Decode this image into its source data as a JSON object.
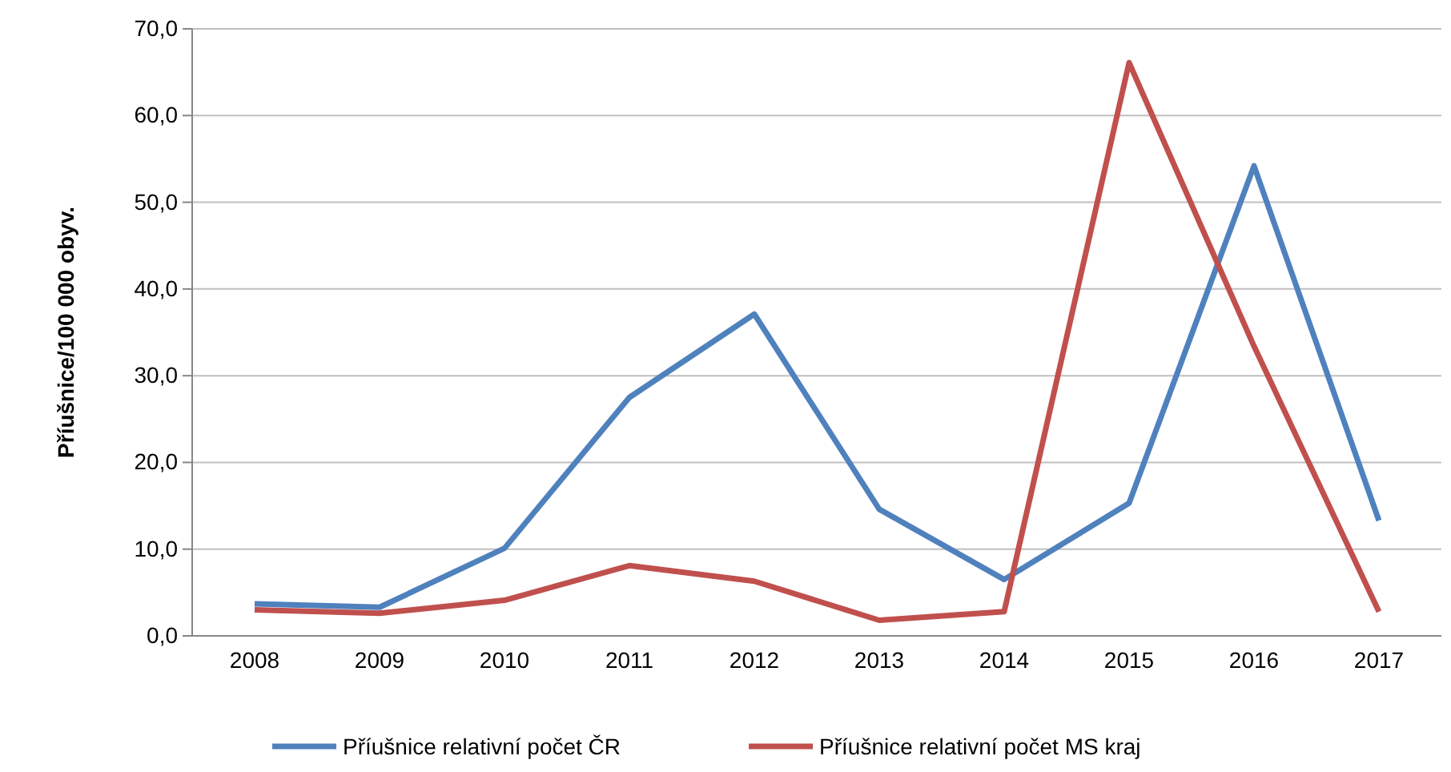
{
  "chart_data": {
    "type": "line",
    "ylabel": "Příušnice/100 000 obyv.",
    "categories": [
      "2008",
      "2009",
      "2010",
      "2011",
      "2012",
      "2013",
      "2014",
      "2015",
      "2016",
      "2017"
    ],
    "series": [
      {
        "name": "Příušnice relativní počet ČR",
        "color": "#4f81bd",
        "values": [
          3.7,
          3.3,
          10.1,
          27.5,
          37.1,
          14.6,
          6.5,
          15.3,
          54.2,
          13.3
        ]
      },
      {
        "name": "Příušnice relativní počet MS kraj",
        "color": "#c0504d",
        "values": [
          3.0,
          2.6,
          4.1,
          8.1,
          6.3,
          1.8,
          2.8,
          66.1,
          33.4,
          2.8
        ]
      }
    ],
    "ylim": [
      0,
      70
    ],
    "yticks": [
      {
        "value": 0,
        "label": "0,0"
      },
      {
        "value": 10,
        "label": "10,0"
      },
      {
        "value": 20,
        "label": "20,0"
      },
      {
        "value": 30,
        "label": "30,0"
      },
      {
        "value": 40,
        "label": "40,0"
      },
      {
        "value": 50,
        "label": "50,0"
      },
      {
        "value": 60,
        "label": "60,0"
      },
      {
        "value": 70,
        "label": "70,0"
      }
    ],
    "grid": "y",
    "legend": "bottom",
    "marker": "none",
    "line_style": "solid"
  }
}
